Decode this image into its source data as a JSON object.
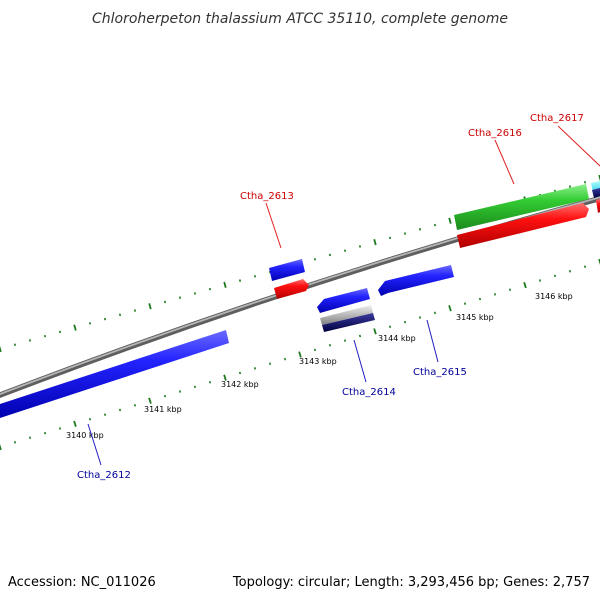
{
  "title": "Chloroherpeton thalassium ATCC 35110, complete genome",
  "footer": {
    "accession": "Accession: NC_011026",
    "summary": "Topology: circular; Length: 3,293,456 bp; Genes: 2,757"
  },
  "colors": {
    "backbone": "#8c8c8c",
    "tick": "#1e7a1e",
    "gene_blue": "#1a1aff",
    "gene_red": "#ff0000",
    "gene_green": "#33cc33",
    "label_forward": "#cc0000",
    "label_reverse": "#000099",
    "leader_forward": "#e02020",
    "leader_reverse": "#2020c0"
  },
  "scale": {
    "tick_labels": [
      "3140 kbp",
      "3141 kbp",
      "3142 kbp",
      "3143 kbp",
      "3144 kbp",
      "3145 kbp",
      "3146 kbp"
    ]
  },
  "genes": {
    "forward": [
      {
        "label": "Ctha_2613"
      },
      {
        "label": "Ctha_2616"
      },
      {
        "label": "Ctha_2617"
      }
    ],
    "reverse": [
      {
        "label": "Ctha_2612"
      },
      {
        "label": "Ctha_2614"
      },
      {
        "label": "Ctha_2615"
      }
    ]
  }
}
